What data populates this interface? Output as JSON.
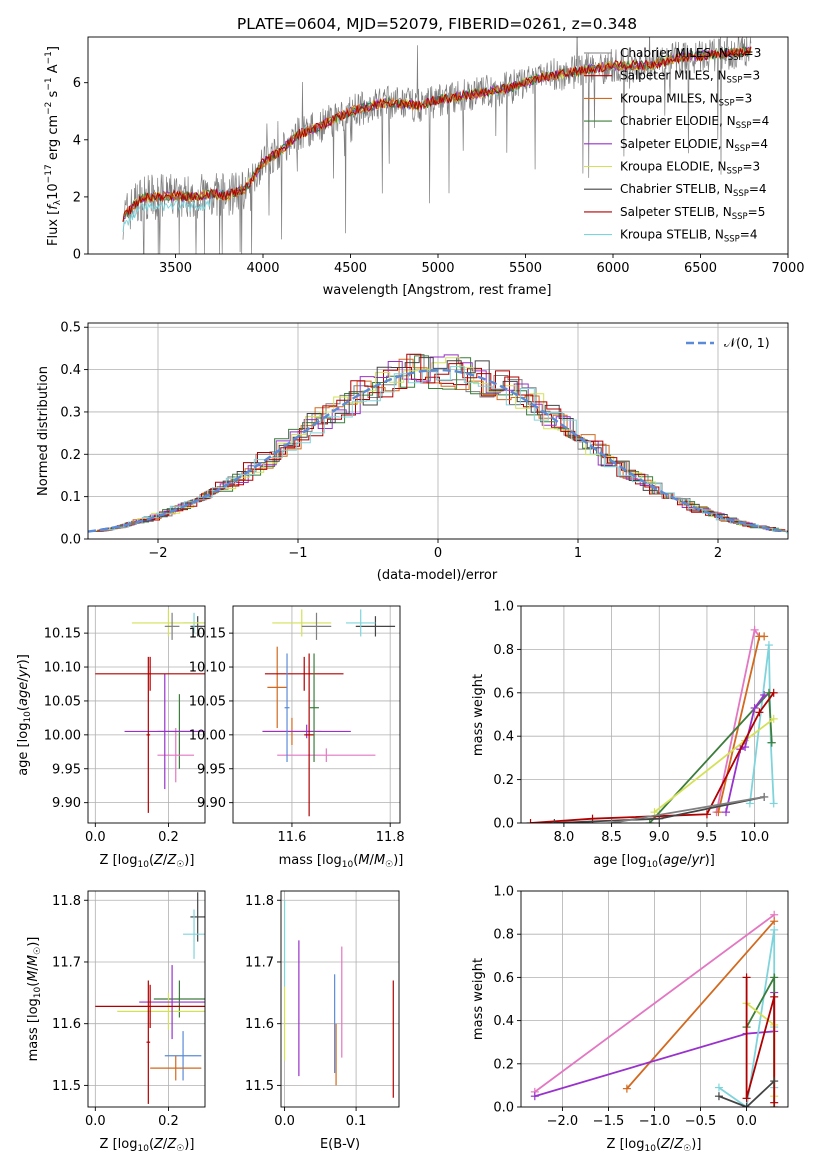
{
  "figure": {
    "title": "PLATE=0604, MJD=52079, FIBERID=0261, z=0.348"
  },
  "colors": {
    "Chabrier MILES": "#7f7f7f",
    "Salpeter MILES": "#2ca02c",
    "Kroupa MILES": "#d2691e",
    "Chabrier ELODIE": "#3c7d3c",
    "Salpeter ELODIE": "#9932cc",
    "Kroupa ELODIE": "#d4e157",
    "Chabrier STELIB": "#444444",
    "Salpeter STELIB": "#b00000",
    "Kroupa STELIB": "#7fd4dc",
    "normal": "#5b8bd6",
    "pink": "#e377c2"
  },
  "chart_data": [
    {
      "id": "spectrum",
      "type": "line",
      "title": "PLATE=0604, MJD=52079, FIBERID=0261, z=0.348",
      "xlabel": "wavelength [Angstrom, rest frame]",
      "ylabel": "Flux [f_λ 10^-17 erg cm^-2 s^-1 A^-1]",
      "xlim": [
        3000,
        7000
      ],
      "ylim": [
        0,
        7.6
      ],
      "xticks": [
        3500,
        4000,
        4500,
        5000,
        5500,
        6000,
        6500,
        7000
      ],
      "yticks": [
        0,
        2,
        4,
        6
      ],
      "grid": false,
      "legend_position": "top-right",
      "legend": [
        {
          "label": "Chabrier MILES, N",
          "sub": "SSP",
          "suffix": "=3"
        },
        {
          "label": "Salpeter MILES, N",
          "sub": "SSP",
          "suffix": "=3"
        },
        {
          "label": "Kroupa MILES, N",
          "sub": "SSP",
          "suffix": "=3"
        },
        {
          "label": "Chabrier ELODIE, N",
          "sub": "SSP",
          "suffix": "=4"
        },
        {
          "label": "Salpeter ELODIE, N",
          "sub": "SSP",
          "suffix": "=4"
        },
        {
          "label": "Kroupa ELODIE, N",
          "sub": "SSP",
          "suffix": "=3"
        },
        {
          "label": "Chabrier STELIB, N",
          "sub": "SSP",
          "suffix": "=4"
        },
        {
          "label": "Salpeter STELIB, N",
          "sub": "SSP",
          "suffix": "=5"
        },
        {
          "label": "Kroupa STELIB, N",
          "sub": "SSP",
          "suffix": "=4"
        }
      ],
      "observed_wavelength_range": [
        3200,
        6790
      ],
      "model_continuum": {
        "x": [
          3200,
          3300,
          3500,
          3600,
          3700,
          3800,
          3900,
          4000,
          4100,
          4200,
          4300,
          4500,
          4700,
          4900,
          5000,
          5200,
          5400,
          5600,
          5800,
          6000,
          6200,
          6400,
          6600,
          6790
        ],
        "y": [
          1.3,
          1.95,
          2.05,
          2.0,
          2.1,
          2.05,
          2.3,
          3.2,
          3.6,
          4.2,
          4.4,
          5.0,
          5.3,
          5.2,
          5.4,
          5.6,
          5.8,
          6.2,
          6.4,
          6.6,
          6.6,
          6.9,
          7.0,
          7.1
        ]
      }
    },
    {
      "id": "residuals",
      "type": "line",
      "xlabel": "(data-model)/error",
      "ylabel": "Normed distribution",
      "xlim": [
        -2.5,
        2.5
      ],
      "ylim": [
        0,
        0.51
      ],
      "xticks": [
        -2,
        -1,
        0,
        1,
        2
      ],
      "yticks": [
        0.0,
        0.1,
        0.2,
        0.3,
        0.4,
        0.5
      ],
      "grid": true,
      "legend_position": "top-right",
      "legend": [
        {
          "label": "𝒩(0, 1)"
        }
      ]
    },
    {
      "id": "age-vs-Z",
      "type": "scatter",
      "xlabel": "Z [log10(Z/Z☉)]",
      "ylabel": "age [log10(age/yr)]",
      "xlim": [
        -0.02,
        0.3
      ],
      "ylim": [
        9.87,
        10.19
      ],
      "xticks": [
        0.0,
        0.2
      ],
      "yticks": [
        9.9,
        9.95,
        10.0,
        10.05,
        10.1,
        10.15
      ],
      "grid": true,
      "series": [
        {
          "x": 0.28,
          "xerr": 0.02,
          "y": 10.16,
          "yerr": 0.015,
          "color": "#444444"
        },
        {
          "x": 0.27,
          "xerr": 0.03,
          "y": 10.165,
          "yerr": 0.015,
          "color": "#7fd4dc"
        },
        {
          "x": 0.2,
          "xerr": 0.1,
          "y": 10.165,
          "yerr": 0.02,
          "color": "#d4e157"
        },
        {
          "x": 0.21,
          "xerr": 0.02,
          "y": 10.16,
          "yerr": 0.02,
          "color": "#7f7f7f"
        },
        {
          "x": 0.23,
          "xerr": 0.06,
          "y": 10.005,
          "yerr": 0.055,
          "color": "#3c7d3c"
        },
        {
          "x": 0.22,
          "xerr": 0.05,
          "y": 9.97,
          "yerr": 0.04,
          "color": "#e377c2"
        },
        {
          "x": 0.19,
          "xerr": 0.11,
          "y": 10.005,
          "yerr": 0.085,
          "color": "#9932cc"
        },
        {
          "x": 0.15,
          "xerr": 0.15,
          "y": 10.09,
          "yerr": 0.025,
          "color": "#b00000"
        },
        {
          "x": 0.145,
          "xerr": 0.005,
          "y": 10.0,
          "yerr": 0.115,
          "color": "#b00000"
        }
      ]
    },
    {
      "id": "age-vs-mass",
      "type": "scatter",
      "xlabel": "mass [log10(M/M☉)]",
      "ylabel": "",
      "xlim": [
        11.48,
        11.82
      ],
      "ylim": [
        9.87,
        10.19
      ],
      "xticks": [
        11.6,
        11.8
      ],
      "yticks": [
        9.9,
        9.95,
        10.0,
        10.05,
        10.1,
        10.15
      ],
      "grid": true,
      "series": [
        {
          "x": 11.77,
          "xerr": 0.04,
          "y": 10.16,
          "yerr": 0.015,
          "color": "#444444"
        },
        {
          "x": 11.74,
          "xerr": 0.03,
          "y": 10.165,
          "yerr": 0.02,
          "color": "#7fd4dc"
        },
        {
          "x": 11.62,
          "xerr": 0.06,
          "y": 10.165,
          "yerr": 0.02,
          "color": "#d4e157"
        },
        {
          "x": 11.65,
          "xerr": 0.03,
          "y": 10.16,
          "yerr": 0.02,
          "color": "#7f7f7f"
        },
        {
          "x": 11.57,
          "xerr": 0.02,
          "y": 10.07,
          "yerr": 0.06,
          "color": "#d2691e"
        },
        {
          "x": 11.6,
          "xerr": 0.06,
          "y": 10.005,
          "yerr": 0.02,
          "color": "#d2691e"
        },
        {
          "x": 11.63,
          "xerr": 0.09,
          "y": 10.005,
          "yerr": 0.01,
          "color": "#9932cc"
        },
        {
          "x": 11.67,
          "xerr": 0.1,
          "y": 9.97,
          "yerr": 0.01,
          "color": "#e377c2"
        },
        {
          "x": 11.625,
          "xerr": 0.08,
          "y": 10.09,
          "yerr": 0.025,
          "color": "#b00000"
        },
        {
          "x": 11.635,
          "xerr": 0.01,
          "y": 10.0,
          "yerr": 0.12,
          "color": "#b00000"
        },
        {
          "x": 11.645,
          "xerr": 0.01,
          "y": 10.04,
          "yerr": 0.08,
          "color": "#3c7d3c"
        },
        {
          "x": 11.59,
          "xerr": 0.005,
          "y": 10.04,
          "yerr": 0.08,
          "color": "#5b8bd6"
        }
      ]
    },
    {
      "id": "mass-weight-vs-age",
      "type": "line",
      "xlabel": "age [log10(age/yr)]",
      "ylabel": "mass weight",
      "xlim": [
        7.55,
        10.35
      ],
      "ylim": [
        0.0,
        1.0
      ],
      "xticks": [
        8.0,
        8.5,
        9.0,
        9.5,
        10.0
      ],
      "yticks": [
        0.0,
        0.2,
        0.4,
        0.6,
        0.8,
        1.0
      ],
      "grid": true,
      "series": [
        {
          "color": "#e377c2",
          "x": [
            9.6,
            10.0,
            10.05
          ],
          "y": [
            0.05,
            0.89,
            0.86
          ]
        },
        {
          "color": "#d2691e",
          "x": [
            9.62,
            10.05,
            10.1
          ],
          "y": [
            0.05,
            0.86,
            0.86
          ]
        },
        {
          "color": "#7fd4dc",
          "x": [
            9.95,
            10.15,
            10.17,
            10.2
          ],
          "y": [
            0.09,
            0.82,
            0.37,
            0.09
          ]
        },
        {
          "color": "#3c7d3c",
          "x": [
            8.9,
            10.15,
            10.18
          ],
          "y": [
            0.0,
            0.6,
            0.37
          ]
        },
        {
          "color": "#d4e157",
          "x": [
            8.95,
            9.9,
            10.2
          ],
          "y": [
            0.05,
            0.38,
            0.48
          ]
        },
        {
          "color": "#9932cc",
          "x": [
            9.7,
            9.85,
            9.9,
            10.0,
            10.1
          ],
          "y": [
            0.05,
            0.34,
            0.35,
            0.53,
            0.59
          ]
        },
        {
          "color": "#b00000",
          "x": [
            7.65,
            8.3,
            9.5,
            10.05,
            10.2
          ],
          "y": [
            0.0,
            0.02,
            0.04,
            0.51,
            0.6
          ]
        },
        {
          "color": "#444444",
          "x": [
            7.9,
            9.0,
            10.1
          ],
          "y": [
            0.0,
            0.02,
            0.12
          ]
        },
        {
          "color": "#7f7f7f",
          "x": [
            8.5,
            10.1
          ],
          "y": [
            0.0,
            0.12
          ]
        }
      ]
    },
    {
      "id": "mass-vs-Z",
      "type": "scatter",
      "xlabel": "Z [log10(Z/Z☉)]",
      "ylabel": "mass [log10(M/M☉)]",
      "xlim": [
        -0.02,
        0.3
      ],
      "ylim": [
        11.465,
        11.815
      ],
      "xticks": [
        0.0,
        0.2
      ],
      "yticks": [
        11.5,
        11.6,
        11.7,
        11.8
      ],
      "grid": true,
      "series": [
        {
          "x": 0.28,
          "xerr": 0.02,
          "y": 11.773,
          "yerr": 0.04,
          "color": "#444444"
        },
        {
          "x": 0.27,
          "xerr": 0.03,
          "y": 11.745,
          "yerr": 0.04,
          "color": "#7fd4dc"
        },
        {
          "x": 0.23,
          "xerr": 0.07,
          "y": 11.64,
          "yerr": 0.03,
          "color": "#3c7d3c"
        },
        {
          "x": 0.2,
          "xerr": 0.14,
          "y": 11.62,
          "yerr": 0.03,
          "color": "#d4e157"
        },
        {
          "x": 0.21,
          "xerr": 0.09,
          "y": 11.635,
          "yerr": 0.06,
          "color": "#9932cc"
        },
        {
          "x": 0.15,
          "xerr": 0.15,
          "y": 11.628,
          "yerr": 0.035,
          "color": "#b00000"
        },
        {
          "x": 0.24,
          "xerr": 0.05,
          "y": 11.548,
          "yerr": 0.04,
          "color": "#5b8bd6"
        },
        {
          "x": 0.22,
          "xerr": 0.07,
          "y": 11.528,
          "yerr": 0.02,
          "color": "#d2691e"
        },
        {
          "x": 0.145,
          "xerr": 0.005,
          "y": 11.57,
          "yerr": 0.1,
          "color": "#b00000"
        }
      ]
    },
    {
      "id": "mass-vs-EBV",
      "type": "scatter",
      "xlabel": "E(B-V)",
      "ylabel": "",
      "xlim": [
        -0.005,
        0.16
      ],
      "ylim": [
        11.465,
        11.815
      ],
      "xticks": [
        0.0,
        0.1
      ],
      "yticks": [
        11.5,
        11.6,
        11.7,
        11.8
      ],
      "grid": true,
      "series": [
        {
          "x": 0.0,
          "y": 11.73,
          "yerr": 0.07,
          "color": "#7fd4dc"
        },
        {
          "x": 0.0,
          "y": 11.6,
          "yerr": 0.06,
          "color": "#d4e157"
        },
        {
          "x": 0.02,
          "y": 11.625,
          "yerr": 0.11,
          "color": "#9932cc"
        },
        {
          "x": 0.07,
          "y": 11.6,
          "yerr": 0.08,
          "color": "#5b8bd6"
        },
        {
          "x": 0.072,
          "y": 11.55,
          "yerr": 0.05,
          "color": "#d2691e"
        },
        {
          "x": 0.08,
          "y": 11.635,
          "yerr": 0.09,
          "color": "#e377c2"
        },
        {
          "x": 0.152,
          "y": 11.575,
          "yerr": 0.095,
          "color": "#b00000"
        }
      ]
    },
    {
      "id": "mass-weight-vs-Z",
      "type": "line",
      "xlabel": "Z [log10(Z/Z☉)]",
      "ylabel": "mass weight",
      "xlim": [
        -2.45,
        0.45
      ],
      "ylim": [
        0.0,
        1.0
      ],
      "xticks": [
        -2.0,
        -1.5,
        -1.0,
        -0.5,
        0.0
      ],
      "yticks": [
        0.0,
        0.2,
        0.4,
        0.6,
        0.8,
        1.0
      ],
      "grid": true,
      "series": [
        {
          "color": "#e377c2",
          "x": [
            -2.3,
            0.3
          ],
          "y": [
            0.07,
            0.89
          ]
        },
        {
          "color": "#d2691e",
          "x": [
            -1.3,
            0.3
          ],
          "y": [
            0.085,
            0.86
          ]
        },
        {
          "color": "#9932cc",
          "x": [
            -2.3,
            0.0,
            0.3,
            0.3
          ],
          "y": [
            0.05,
            0.34,
            0.35,
            0.53
          ]
        },
        {
          "color": "#7fd4dc",
          "x": [
            -0.3,
            0.0,
            0.3,
            0.3,
            0.3
          ],
          "y": [
            0.09,
            0.0,
            0.82,
            0.37,
            0.09
          ]
        },
        {
          "color": "#3c7d3c",
          "x": [
            0.0,
            0.3,
            0.3
          ],
          "y": [
            0.37,
            0.6,
            0.0
          ]
        },
        {
          "color": "#d4e157",
          "x": [
            0.0,
            0.3,
            0.3
          ],
          "y": [
            0.48,
            0.38,
            0.05
          ]
        },
        {
          "color": "#b00000",
          "x": [
            0.0,
            0.0,
            0.3,
            0.3
          ],
          "y": [
            0.6,
            0.04,
            0.51,
            0.02
          ]
        },
        {
          "color": "#444444",
          "x": [
            -0.3,
            0.0,
            0.3
          ],
          "y": [
            0.05,
            0.0,
            0.12
          ]
        }
      ]
    }
  ]
}
